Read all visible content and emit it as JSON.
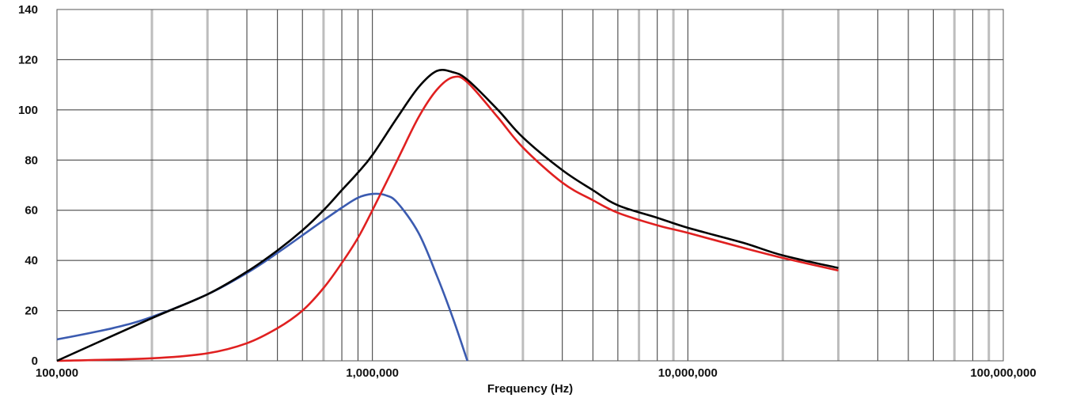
{
  "chart_data": {
    "type": "line",
    "title": "",
    "xlabel": "Frequency (Hz)",
    "ylabel": "",
    "x_scale": "log",
    "xlim": [
      100000,
      100000000
    ],
    "ylim": [
      0,
      140
    ],
    "grid": true,
    "legend": "none",
    "x_tick_labels": [
      "100,000",
      "1,000,000",
      "10,000,000",
      "100,000,000"
    ],
    "y_tick_labels": [
      "0",
      "20",
      "40",
      "60",
      "80",
      "100",
      "120",
      "140"
    ],
    "series": [
      {
        "color": "#3b5bb0",
        "x": [
          100000,
          150000,
          200000,
          300000,
          400000,
          500000,
          600000,
          700000,
          800000,
          900000,
          1000000,
          1100000,
          1200000,
          1400000,
          1600000,
          1800000,
          2000000
        ],
        "y": [
          8.5,
          13,
          17.5,
          26.5,
          35,
          43,
          50,
          56,
          61,
          65,
          66.5,
          66,
          63,
          51,
          34,
          17,
          0
        ]
      },
      {
        "color": "#e02020",
        "x": [
          100000,
          200000,
          300000,
          400000,
          500000,
          600000,
          700000,
          800000,
          900000,
          1000000,
          1200000,
          1400000,
          1600000,
          1800000,
          2000000,
          2500000,
          3000000,
          4000000,
          5000000,
          6000000,
          8000000,
          10000000,
          15000000,
          20000000,
          30000000
        ],
        "y": [
          0,
          1,
          3,
          7,
          13,
          20,
          29,
          39,
          49,
          60,
          80,
          97,
          108,
          113,
          111,
          97,
          85,
          71,
          64,
          59,
          54,
          51,
          45,
          41,
          36
        ]
      },
      {
        "color": "#000000",
        "x": [
          100000,
          200000,
          300000,
          400000,
          500000,
          600000,
          700000,
          800000,
          900000,
          1000000,
          1200000,
          1400000,
          1600000,
          1800000,
          2000000,
          2500000,
          3000000,
          4000000,
          5000000,
          6000000,
          8000000,
          10000000,
          15000000,
          20000000,
          30000000
        ],
        "y": [
          0,
          17,
          26.5,
          35.5,
          44,
          52,
          60,
          68,
          75,
          82,
          97,
          109,
          115.5,
          115,
          112,
          100,
          89,
          76,
          68,
          62,
          57,
          53,
          47,
          42,
          37
        ]
      }
    ]
  }
}
